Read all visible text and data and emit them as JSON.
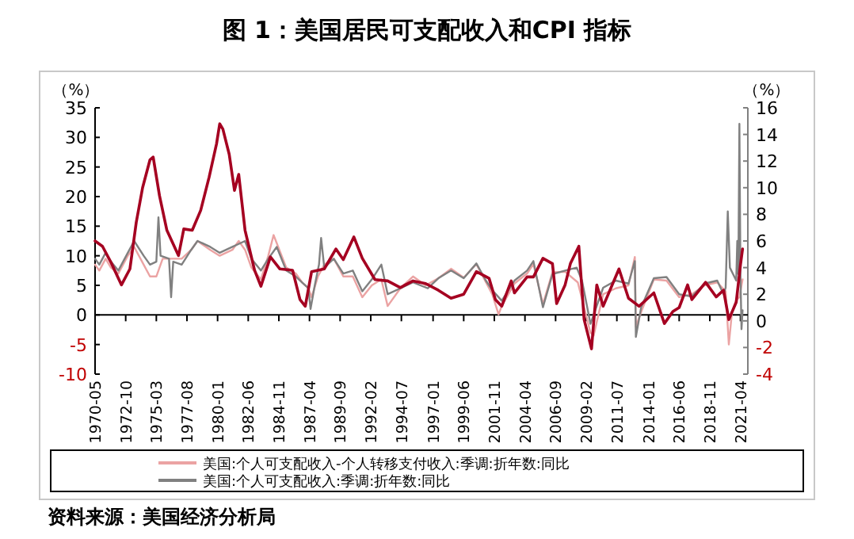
{
  "chart_data": {
    "type": "line",
    "title": "图 1：美国居民可支配收入和CPI 指标",
    "ylabel": "（%）",
    "y2label": "（%）",
    "annotations": [
      "资料来源：美国经济分析局"
    ],
    "xlim": [
      "1970-05",
      "2021-11"
    ],
    "xticks": [
      "1970-05",
      "1972-10",
      "1975-03",
      "1977-08",
      "1980-01",
      "1982-06",
      "1984-11",
      "1987-04",
      "1989-09",
      "1992-02",
      "1994-07",
      "1997-01",
      "1999-06",
      "2001-11",
      "2004-04",
      "2006-09",
      "2009-02",
      "2011-07",
      "2014-01",
      "2016-06",
      "2018-11",
      "2021-04"
    ],
    "ylim": [
      -10,
      35
    ],
    "yticks": [
      -10,
      -5,
      0,
      5,
      10,
      15,
      20,
      25,
      30,
      35
    ],
    "y2lim": [
      -4,
      16
    ],
    "y2ticks": [
      -4,
      -2,
      0,
      2,
      4,
      6,
      8,
      10,
      12,
      14,
      16
    ],
    "legend": "bottom",
    "series": [
      {
        "name": "美国:个人可支配收入-个人转移支付收入:季调:折年数:同比",
        "color": "#eba3a3",
        "x": [
          "1970-05",
          "1970-09",
          "1971-03",
          "1971-08",
          "1972-03",
          "1972-12",
          "1973-06",
          "1974-03",
          "1974-09",
          "1975-03",
          "1975-09",
          "1976-05",
          "1977-03",
          "1977-12",
          "1978-06",
          "1979-06",
          "1980-03",
          "1980-09",
          "1981-03",
          "1981-09",
          "1982-03",
          "1982-09",
          "1983-06",
          "1984-01",
          "1984-06",
          "1985-06",
          "1986-03",
          "1986-09",
          "1987-03",
          "1987-06",
          "1987-12",
          "1988-06",
          "1989-03",
          "1989-12",
          "1990-09",
          "1991-06",
          "1992-03",
          "1992-12",
          "1993-06",
          "1994-06",
          "1995-06",
          "1996-06",
          "1997-06",
          "1998-06",
          "1999-06",
          "2000-06",
          "2001-09",
          "2002-03",
          "2002-06",
          "2003-06",
          "2004-06",
          "2004-12",
          "2005-09",
          "2006-06",
          "2007-06",
          "2008-06",
          "2009-06",
          "2009-09",
          "2010-06",
          "2011-06",
          "2012-06",
          "2012-12",
          "2013-01",
          "2013-06",
          "2014-06",
          "2015-06",
          "2016-06",
          "2017-06",
          "2018-06",
          "2019-06",
          "2020-02",
          "2020-05",
          "2020-08",
          "2020-12",
          "2021-03",
          "2021-06"
        ],
        "values": [
          8.5,
          7.5,
          9.5,
          8.0,
          7.0,
          10.0,
          11.5,
          8.5,
          6.5,
          6.5,
          9.5,
          9.5,
          9.5,
          11.0,
          12.5,
          11.0,
          10.0,
          10.5,
          11.0,
          12.5,
          11.0,
          8.0,
          6.0,
          10.0,
          13.5,
          8.0,
          7.0,
          5.5,
          4.5,
          3.0,
          6.5,
          8.5,
          9.5,
          6.5,
          6.5,
          3.0,
          5.0,
          6.0,
          1.5,
          4.5,
          6.5,
          5.0,
          6.2,
          7.8,
          6.3,
          8.6,
          3.5,
          0.1,
          1.5,
          5.3,
          7.0,
          8.6,
          1.8,
          7.2,
          7.3,
          5.5,
          -3.0,
          -3.5,
          3.5,
          4.5,
          5.0,
          9.8,
          -2.0,
          0.5,
          6.0,
          5.8,
          3.0,
          3.5,
          5.0,
          5.5,
          4.0,
          -5.0,
          0.5,
          2.5,
          3.0,
          6.0
        ]
      },
      {
        "name": "美国:个人可支配收入:季调:折年数:同比",
        "color": "#808080",
        "x": [
          "1970-05",
          "1970-09",
          "1971-03",
          "1971-08",
          "1972-03",
          "1972-12",
          "1973-06",
          "1974-03",
          "1974-09",
          "1975-03",
          "1975-05",
          "1975-07",
          "1976-03",
          "1976-05",
          "1976-07",
          "1977-03",
          "1977-12",
          "1978-06",
          "1979-06",
          "1980-03",
          "1980-09",
          "1981-03",
          "1981-09",
          "1982-03",
          "1982-09",
          "1983-06",
          "1984-01",
          "1984-09",
          "1985-06",
          "1986-03",
          "1986-09",
          "1987-03",
          "1987-05",
          "1987-09",
          "1988-01",
          "1988-03",
          "1988-06",
          "1989-03",
          "1989-12",
          "1990-09",
          "1991-06",
          "1992-03",
          "1992-12",
          "1993-06",
          "1994-06",
          "1995-06",
          "1996-08",
          "1997-06",
          "1998-06",
          "1999-06",
          "2000-06",
          "2001-03",
          "2001-09",
          "2002-06",
          "2003-06",
          "2004-06",
          "2004-12",
          "2005-09",
          "2006-06",
          "2007-06",
          "2008-05",
          "2008-10",
          "2009-06",
          "2010-06",
          "2011-06",
          "2012-06",
          "2012-12",
          "2013-01",
          "2013-06",
          "2014-06",
          "2015-06",
          "2016-06",
          "2017-06",
          "2018-06",
          "2019-06",
          "2019-12",
          "2020-02",
          "2020-04",
          "2020-06",
          "2020-12",
          "2021-01",
          "2021-02",
          "2021-03",
          "2021-04",
          "2021-05",
          "2021-06"
        ],
        "values": [
          9.5,
          8.5,
          10.5,
          9.0,
          7.5,
          10.5,
          12.5,
          10.0,
          8.5,
          9.0,
          16.5,
          10.0,
          9.5,
          3.0,
          9.0,
          8.5,
          11.0,
          12.5,
          11.5,
          10.5,
          11.0,
          11.5,
          12.0,
          12.5,
          9.5,
          7.5,
          9.5,
          11.5,
          7.5,
          6.5,
          5.5,
          4.5,
          1.0,
          5.0,
          8.5,
          13.0,
          8.0,
          9.5,
          7.0,
          7.5,
          4.0,
          6.0,
          8.5,
          3.5,
          4.5,
          5.5,
          4.5,
          6.2,
          7.5,
          6.2,
          8.7,
          5.8,
          4.2,
          2.4,
          5.8,
          7.5,
          9.1,
          1.3,
          6.9,
          7.5,
          8.0,
          5.8,
          -1.5,
          4.6,
          5.8,
          5.3,
          9.1,
          -3.7,
          1.3,
          6.2,
          6.4,
          3.5,
          3.1,
          5.3,
          5.8,
          3.5,
          4.6,
          17.5,
          8.0,
          5.8,
          12.5,
          6.9,
          32.3,
          6.9,
          -2.4,
          0.8
        ]
      },
      {
        "color": "#a50021",
        "axis": "y2",
        "x": [
          "1970-05",
          "1970-12",
          "1971-08",
          "1972-06",
          "1973-02",
          "1973-08",
          "1974-02",
          "1974-09",
          "1974-12",
          "1975-06",
          "1976-01",
          "1976-12",
          "1977-05",
          "1978-01",
          "1978-09",
          "1979-05",
          "1979-12",
          "1980-03",
          "1980-06",
          "1980-12",
          "1981-05",
          "1981-09",
          "1982-03",
          "1982-12",
          "1983-06",
          "1984-03",
          "1984-12",
          "1985-12",
          "1986-07",
          "1986-12",
          "1987-06",
          "1988-06",
          "1989-05",
          "1989-12",
          "1990-10",
          "1991-06",
          "1992-06",
          "1993-06",
          "1994-06",
          "1995-06",
          "1996-06",
          "1997-06",
          "1998-06",
          "1999-06",
          "2000-06",
          "2001-06",
          "2001-12",
          "2002-06",
          "2003-03",
          "2003-06",
          "2004-06",
          "2004-12",
          "2005-09",
          "2006-06",
          "2006-10",
          "2007-06",
          "2007-11",
          "2008-07",
          "2008-12",
          "2009-07",
          "2009-12",
          "2010-06",
          "2011-09",
          "2012-06",
          "2013-04",
          "2014-06",
          "2015-04",
          "2015-12",
          "2016-06",
          "2017-02",
          "2017-06",
          "2018-07",
          "2019-05",
          "2019-12",
          "2020-05",
          "2020-12",
          "2021-04",
          "2021-06"
        ],
        "values": [
          6.0,
          5.6,
          4.4,
          2.7,
          3.9,
          7.4,
          10.0,
          12.1,
          12.3,
          9.4,
          6.8,
          4.9,
          6.9,
          6.8,
          8.3,
          10.8,
          13.3,
          14.8,
          14.4,
          12.5,
          9.8,
          11.0,
          6.8,
          3.8,
          2.6,
          4.8,
          3.9,
          3.8,
          1.6,
          1.1,
          3.7,
          3.9,
          5.4,
          4.6,
          6.3,
          4.7,
          3.1,
          3.0,
          2.5,
          3.0,
          2.8,
          2.3,
          1.7,
          2.0,
          3.7,
          3.2,
          1.6,
          1.1,
          3.0,
          2.1,
          3.3,
          3.3,
          4.7,
          4.3,
          1.3,
          2.7,
          4.3,
          5.6,
          0.1,
          -2.1,
          2.7,
          1.1,
          3.9,
          1.7,
          1.1,
          2.1,
          -0.2,
          0.7,
          1.0,
          2.7,
          1.6,
          2.9,
          1.8,
          2.3,
          0.1,
          1.4,
          4.2,
          5.4
        ]
      }
    ]
  }
}
